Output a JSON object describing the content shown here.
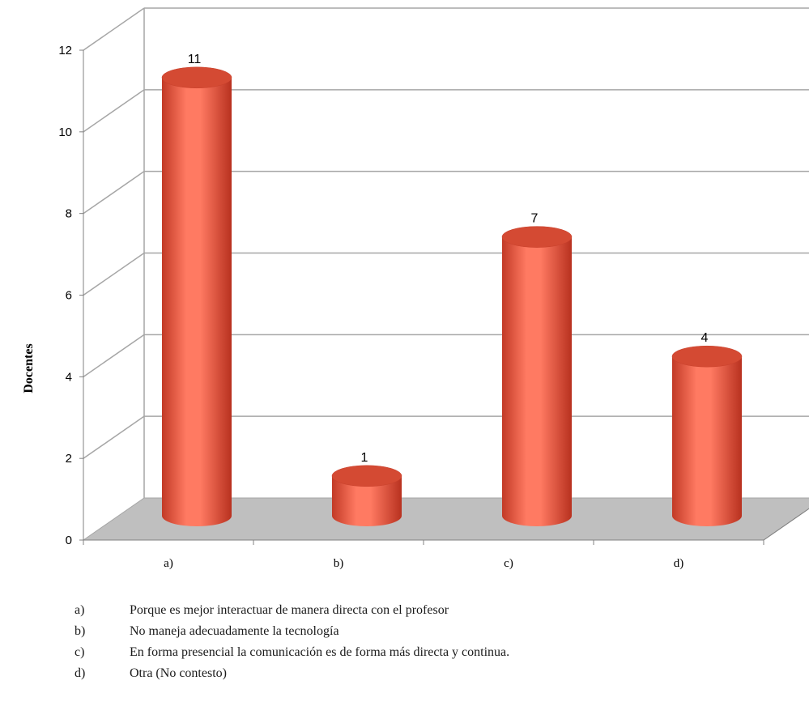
{
  "chart_data": {
    "type": "bar",
    "ylabel": "Docentes",
    "ylim": [
      0,
      12
    ],
    "yticks": [
      0,
      2,
      4,
      6,
      8,
      10,
      12
    ],
    "grid": true,
    "categories": [
      "a)",
      "b)",
      "c)",
      "d)"
    ],
    "values": [
      11,
      1,
      7,
      4
    ],
    "data_labels": [
      "11",
      "1",
      "7",
      "4"
    ],
    "colors": {
      "bar": "#f2614a",
      "floor": "#bfbfbf",
      "grid": "#a6a6a6"
    }
  },
  "legend": [
    {
      "key": "a)",
      "text": "Porque es mejor interactuar de manera directa con el profesor"
    },
    {
      "key": "b)",
      "text": "No maneja adecuadamente la tecnología"
    },
    {
      "key": "c)",
      "text": "En forma presencial la comunicación es de forma más directa y continua."
    },
    {
      "key": "d)",
      "text": "Otra (No contesto)"
    }
  ]
}
